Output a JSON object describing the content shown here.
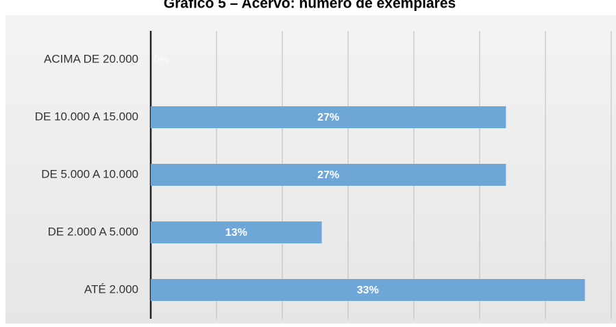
{
  "chart_data": {
    "type": "bar",
    "orientation": "horizontal",
    "title": "Gráfico 5 – Acervo: número de exemplares",
    "categories": [
      "ACIMA DE 20.000",
      "DE 10.000 A 15.000",
      "DE 5.000 A 10.000",
      "DE 2.000 A 5.000",
      "ATÉ 2.000"
    ],
    "values": [
      0,
      27,
      27,
      13,
      33
    ],
    "value_labels": [
      "0%",
      "27%",
      "27%",
      "13%",
      "33%"
    ],
    "color": "#6fa6d8",
    "xlim": [
      0,
      35
    ],
    "xticks": [
      0,
      5,
      10,
      15,
      20,
      25,
      30,
      35
    ],
    "grid": true
  }
}
